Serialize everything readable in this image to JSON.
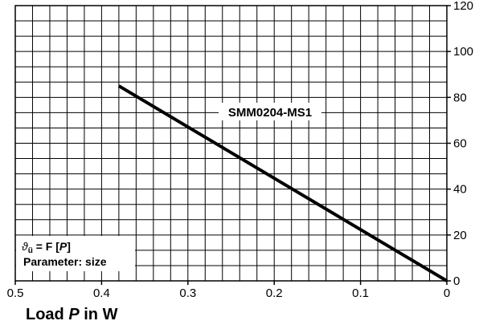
{
  "chart_data": {
    "type": "line",
    "x_ticks": [
      "0.5",
      "0.4",
      "0.3",
      "0.2",
      "0.1",
      "0"
    ],
    "y_ticks": [
      "0",
      "20",
      "40",
      "60",
      "80",
      "100",
      "120"
    ],
    "xlim": [
      0.5,
      0
    ],
    "ylim": [
      0,
      120
    ],
    "grid": true,
    "xlabel_prefix": "Load ",
    "xlabel_var": "P",
    "xlabel_suffix": " in W",
    "ylabel": "",
    "series": [
      {
        "name": "SMM0204-MS1",
        "x": [
          0.38,
          0
        ],
        "y": [
          85,
          0
        ]
      }
    ],
    "legend": {
      "line1_var": "ϑ",
      "line1_sub": "ü",
      "line1_mid": " = F [",
      "line1_var2": "P",
      "line1_end": "]",
      "line2": "Parameter: size"
    }
  }
}
